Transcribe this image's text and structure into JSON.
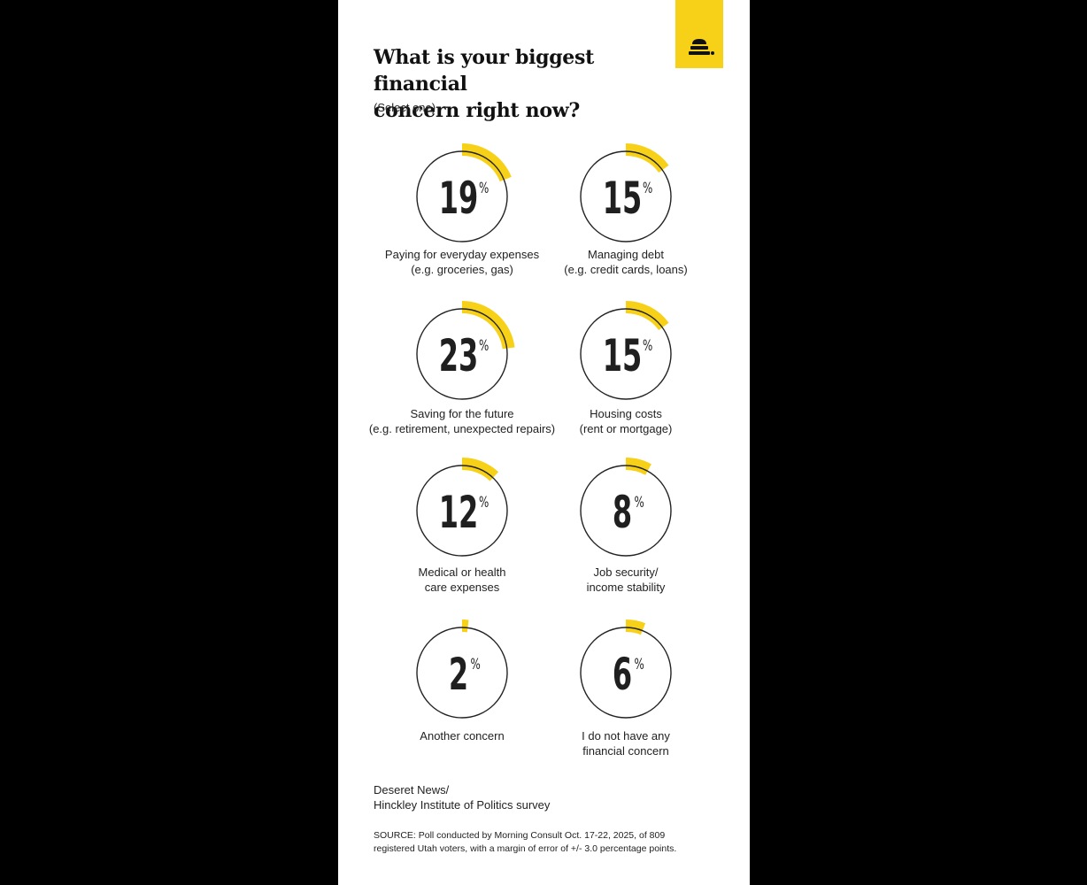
{
  "header": {
    "title_line1": "What is your biggest financial",
    "title_line2": "concern right now?",
    "subtitle": "(Select one)"
  },
  "logo": {
    "icon": "beehive-icon",
    "background_color": "#F7D117"
  },
  "colors": {
    "accent": "#F7D117",
    "ring_stroke": "#222222",
    "number_text": "#1f1f1f"
  },
  "chart_data": {
    "type": "radial-progress",
    "unit": "%",
    "items": [
      {
        "value": 19,
        "label_line1": "Paying for everyday expenses",
        "label_line2": "(e.g. groceries, gas)"
      },
      {
        "value": 15,
        "label_line1": "Managing debt",
        "label_line2": "(e.g. credit cards, loans)"
      },
      {
        "value": 23,
        "label_line1": "Saving for the future",
        "label_line2": "(e.g. retirement, unexpected repairs)"
      },
      {
        "value": 15,
        "label_line1": "Housing costs",
        "label_line2": "(rent or mortgage)"
      },
      {
        "value": 12,
        "label_line1": "Medical or health",
        "label_line2": "care expenses"
      },
      {
        "value": 8,
        "label_line1": "Job security/",
        "label_line2": "income stability"
      },
      {
        "value": 2,
        "label_line1": "Another concern",
        "label_line2": ""
      },
      {
        "value": 6,
        "label_line1": "I do not have any",
        "label_line2": "financial concern"
      }
    ]
  },
  "footer": {
    "credit_line1": "Deseret News/",
    "credit_line2": "Hinckley Institute of Politics survey",
    "source_line1": "SOURCE: Poll conducted by Morning Consult Oct. 17-22, 2025, of 809",
    "source_line2": "registered Utah voters, with a margin of error of +/- 3.0 percentage points."
  }
}
